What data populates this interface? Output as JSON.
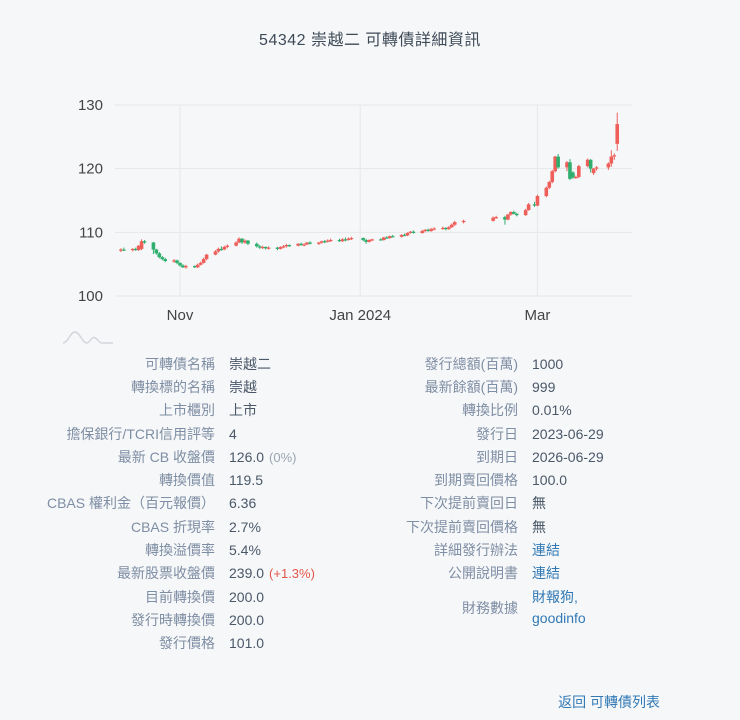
{
  "page": {
    "title": "54342 崇越二 可轉債詳細資訊"
  },
  "footer": {
    "back_label": "返回 可轉債列表"
  },
  "colors": {
    "up_candle": "#ee5f5a",
    "down_candle": "#2fae6e",
    "link": "#3279b5",
    "change_up": "#e4564a",
    "muted": "#9aa5b1"
  },
  "chart_data": {
    "type": "candlestick",
    "title": "",
    "xlabel": "",
    "ylabel": "",
    "grid": true,
    "legend": false,
    "y_ticks": [
      100,
      110,
      120,
      130
    ],
    "ylim": [
      99,
      130.5
    ],
    "x_range": [
      "2023-10-10",
      "2024-04-02"
    ],
    "x_ticks": [
      {
        "date": "2023-11-01",
        "label": "Nov"
      },
      {
        "date": "2024-01-01",
        "label": "Jan 2024"
      },
      {
        "date": "2024-03-01",
        "label": "Mar"
      }
    ],
    "up_color": "#ee5f5a",
    "down_color": "#2fae6e",
    "columns": [
      "date",
      "open",
      "high",
      "low",
      "close"
    ],
    "candles": [
      [
        "2023-10-12",
        107.1,
        107.5,
        106.9,
        107.3
      ],
      [
        "2023-10-13",
        107.3,
        107.6,
        107.1,
        107.2
      ],
      [
        "2023-10-16",
        107.2,
        107.5,
        107.0,
        107.4
      ],
      [
        "2023-10-17",
        107.4,
        107.6,
        107.1,
        107.2
      ],
      [
        "2023-10-18",
        107.2,
        108.0,
        107.1,
        107.9
      ],
      [
        "2023-10-19",
        107.4,
        108.9,
        107.2,
        108.6
      ],
      [
        "2023-10-20",
        108.6,
        108.8,
        108.2,
        108.4
      ],
      [
        "2023-10-23",
        108.4,
        108.5,
        106.6,
        107.3
      ],
      [
        "2023-10-24",
        107.3,
        107.4,
        106.5,
        106.7
      ],
      [
        "2023-10-25",
        106.7,
        106.9,
        105.9,
        106.1
      ],
      [
        "2023-10-26",
        106.1,
        106.3,
        105.6,
        105.8
      ],
      [
        "2023-10-27",
        105.8,
        106.0,
        105.3,
        105.5
      ],
      [
        "2023-10-30",
        105.5,
        105.8,
        105.2,
        105.6
      ],
      [
        "2023-10-31",
        105.6,
        105.7,
        105.0,
        105.2
      ],
      [
        "2023-11-01",
        105.2,
        105.3,
        104.6,
        104.8
      ],
      [
        "2023-11-02",
        104.8,
        105.0,
        104.4,
        104.5
      ],
      [
        "2023-11-03",
        104.5,
        104.9,
        104.3,
        104.7
      ],
      [
        "2023-11-06",
        104.7,
        104.8,
        104.4,
        104.5
      ],
      [
        "2023-11-07",
        104.5,
        105.1,
        104.4,
        104.9
      ],
      [
        "2023-11-08",
        104.9,
        105.4,
        104.8,
        105.2
      ],
      [
        "2023-11-09",
        105.2,
        106.0,
        105.1,
        105.8
      ],
      [
        "2023-11-10",
        105.8,
        106.6,
        105.6,
        106.5
      ],
      [
        "2023-11-13",
        106.5,
        107.2,
        106.4,
        107.0
      ],
      [
        "2023-11-14",
        107.0,
        107.6,
        106.8,
        107.4
      ],
      [
        "2023-11-15",
        107.4,
        107.8,
        107.1,
        107.3
      ],
      [
        "2023-11-16",
        107.3,
        107.9,
        107.2,
        107.7
      ],
      [
        "2023-11-17",
        107.7,
        108.1,
        107.5,
        107.9
      ],
      [
        "2023-11-20",
        107.9,
        108.6,
        107.8,
        108.4
      ],
      [
        "2023-11-21",
        108.4,
        109.2,
        108.3,
        109.0
      ],
      [
        "2023-11-22",
        109.0,
        109.1,
        108.2,
        108.4
      ],
      [
        "2023-11-23",
        108.4,
        108.9,
        108.2,
        108.7
      ],
      [
        "2023-11-24",
        108.7,
        108.8,
        108.0,
        108.2
      ],
      [
        "2023-11-27",
        108.2,
        108.4,
        107.6,
        107.8
      ],
      [
        "2023-11-28",
        107.8,
        108.0,
        107.4,
        107.6
      ],
      [
        "2023-11-29",
        107.6,
        107.9,
        107.4,
        107.7
      ],
      [
        "2023-11-30",
        107.7,
        107.8,
        107.3,
        107.5
      ],
      [
        "2023-12-01",
        107.5,
        107.8,
        107.3,
        107.6
      ],
      [
        "2023-12-04",
        107.6,
        107.7,
        107.2,
        107.4
      ],
      [
        "2023-12-05",
        107.4,
        107.8,
        107.3,
        107.7
      ],
      [
        "2023-12-06",
        107.7,
        108.0,
        107.5,
        107.8
      ],
      [
        "2023-12-07",
        107.8,
        108.2,
        107.6,
        108.0
      ],
      [
        "2023-12-08",
        108.0,
        108.1,
        107.7,
        107.9
      ],
      [
        "2023-12-11",
        107.9,
        108.3,
        107.8,
        108.2
      ],
      [
        "2023-12-12",
        108.2,
        108.4,
        107.9,
        108.0
      ],
      [
        "2023-12-13",
        108.0,
        108.3,
        107.8,
        108.1
      ],
      [
        "2023-12-14",
        108.1,
        108.5,
        108.0,
        108.4
      ],
      [
        "2023-12-15",
        108.4,
        108.6,
        108.1,
        108.2
      ],
      [
        "2023-12-18",
        108.2,
        108.5,
        108.0,
        108.4
      ],
      [
        "2023-12-19",
        108.4,
        108.7,
        108.2,
        108.6
      ],
      [
        "2023-12-20",
        108.6,
        108.8,
        108.3,
        108.5
      ],
      [
        "2023-12-21",
        108.5,
        108.9,
        108.4,
        108.7
      ],
      [
        "2023-12-22",
        108.7,
        109.0,
        108.5,
        108.8
      ],
      [
        "2023-12-25",
        108.8,
        109.0,
        108.5,
        108.6
      ],
      [
        "2023-12-26",
        108.6,
        109.1,
        108.5,
        108.9
      ],
      [
        "2023-12-27",
        108.9,
        109.2,
        108.6,
        108.8
      ],
      [
        "2023-12-28",
        108.8,
        109.2,
        108.7,
        109.0
      ],
      [
        "2023-12-29",
        109.0,
        109.3,
        108.8,
        109.1
      ],
      [
        "2024-01-02",
        109.1,
        109.2,
        108.6,
        108.8
      ],
      [
        "2024-01-03",
        108.8,
        109.0,
        108.2,
        108.5
      ],
      [
        "2024-01-04",
        108.5,
        108.9,
        108.4,
        108.8
      ],
      [
        "2024-01-05",
        108.8,
        109.0,
        108.6,
        108.9
      ],
      [
        "2024-01-08",
        108.9,
        109.1,
        108.7,
        108.8
      ],
      [
        "2024-01-09",
        108.8,
        109.3,
        108.7,
        109.2
      ],
      [
        "2024-01-10",
        109.2,
        109.4,
        109.0,
        109.1
      ],
      [
        "2024-01-11",
        109.1,
        109.5,
        109.0,
        109.4
      ],
      [
        "2024-01-12",
        109.4,
        109.6,
        109.2,
        109.3
      ],
      [
        "2024-01-15",
        109.3,
        109.7,
        109.2,
        109.6
      ],
      [
        "2024-01-16",
        109.6,
        109.8,
        109.4,
        109.5
      ],
      [
        "2024-01-17",
        109.5,
        110.0,
        109.4,
        109.9
      ],
      [
        "2024-01-18",
        109.9,
        110.2,
        109.8,
        110.1
      ],
      [
        "2024-01-19",
        110.1,
        110.3,
        109.8,
        109.9
      ],
      [
        "2024-01-22",
        109.9,
        110.4,
        109.8,
        110.2
      ],
      [
        "2024-01-23",
        110.2,
        110.5,
        110.0,
        110.4
      ],
      [
        "2024-01-24",
        110.4,
        110.6,
        110.1,
        110.2
      ],
      [
        "2024-01-25",
        110.2,
        110.7,
        110.1,
        110.5
      ],
      [
        "2024-01-26",
        110.5,
        110.8,
        110.3,
        110.6
      ],
      [
        "2024-01-29",
        110.6,
        110.9,
        110.4,
        110.7
      ],
      [
        "2024-01-30",
        110.7,
        110.8,
        110.3,
        110.5
      ],
      [
        "2024-01-31",
        110.5,
        111.0,
        110.4,
        110.8
      ],
      [
        "2024-02-01",
        110.8,
        111.4,
        110.7,
        111.2
      ],
      [
        "2024-02-02",
        111.2,
        111.8,
        111.0,
        111.6
      ],
      [
        "2024-02-05",
        111.6,
        112.0,
        111.4,
        111.8
      ],
      [
        "2024-02-15",
        111.8,
        112.5,
        111.7,
        112.3
      ],
      [
        "2024-02-16",
        112.3,
        112.6,
        112.1,
        112.4
      ],
      [
        "2024-02-19",
        112.4,
        112.6,
        111.2,
        112.0
      ],
      [
        "2024-02-20",
        112.0,
        112.9,
        111.9,
        112.8
      ],
      [
        "2024-02-21",
        112.8,
        113.3,
        112.6,
        113.2
      ],
      [
        "2024-02-22",
        113.2,
        113.4,
        112.8,
        112.9
      ],
      [
        "2024-02-23",
        112.9,
        113.1,
        112.5,
        112.7
      ],
      [
        "2024-02-26",
        112.7,
        113.7,
        112.6,
        113.5
      ],
      [
        "2024-02-27",
        113.5,
        114.6,
        113.4,
        114.4
      ],
      [
        "2024-02-29",
        114.4,
        114.8,
        114.0,
        114.2
      ],
      [
        "2024-03-01",
        114.2,
        115.9,
        114.1,
        115.7
      ],
      [
        "2024-03-04",
        115.7,
        117.2,
        115.5,
        117.0
      ],
      [
        "2024-03-05",
        117.0,
        118.1,
        116.8,
        117.9
      ],
      [
        "2024-03-06",
        117.9,
        119.8,
        117.7,
        119.6
      ],
      [
        "2024-03-07",
        119.6,
        122.0,
        119.4,
        121.9
      ],
      [
        "2024-03-08",
        121.9,
        122.3,
        120.0,
        120.2
      ],
      [
        "2024-03-11",
        120.2,
        121.2,
        119.6,
        121.0
      ],
      [
        "2024-03-12",
        121.0,
        121.5,
        118.2,
        118.4
      ],
      [
        "2024-03-13",
        119.4,
        119.6,
        118.4,
        118.6
      ],
      [
        "2024-03-14",
        118.6,
        118.9,
        118.4,
        118.7
      ],
      [
        "2024-03-15",
        118.7,
        120.6,
        118.5,
        120.4
      ],
      [
        "2024-03-18",
        120.4,
        121.6,
        120.2,
        121.4
      ],
      [
        "2024-03-19",
        121.4,
        121.5,
        119.4,
        120.0
      ],
      [
        "2024-03-20",
        119.3,
        120.1,
        119.0,
        120.0
      ],
      [
        "2024-03-21",
        120.0,
        120.4,
        119.7,
        120.2
      ],
      [
        "2024-03-25",
        120.2,
        121.0,
        119.8,
        120.8
      ],
      [
        "2024-03-26",
        120.8,
        122.9,
        120.3,
        121.9
      ],
      [
        "2024-03-27",
        121.9,
        122.4,
        121.4,
        122.1
      ],
      [
        "2024-03-28",
        123.9,
        128.8,
        122.8,
        127.0
      ]
    ]
  },
  "details": {
    "left": [
      {
        "label": "可轉債名稱",
        "value": "崇越二"
      },
      {
        "label": "轉換標的名稱",
        "value": "崇越"
      },
      {
        "label": "上市櫃別",
        "value": "上市"
      },
      {
        "label": "擔保銀行/TCRI信用評等",
        "value": "4"
      },
      {
        "label": "最新 CB 收盤價",
        "value": "126.0",
        "suffix": "(0%)",
        "suffix_style": "muted"
      },
      {
        "label": "轉換價值",
        "value": "119.5"
      },
      {
        "label": "CBAS 權利金（百元報價）",
        "value": "6.36"
      },
      {
        "label": "CBAS 折現率",
        "value": "2.7%"
      },
      {
        "label": "轉換溢價率",
        "value": "5.4%"
      },
      {
        "label": "最新股票收盤價",
        "value": "239.0",
        "suffix": "(+1.3%)",
        "suffix_style": "up"
      },
      {
        "label": "目前轉換價",
        "value": "200.0"
      },
      {
        "label": "發行時轉換價",
        "value": "200.0"
      },
      {
        "label": "發行價格",
        "value": "101.0"
      }
    ],
    "right": [
      {
        "label": "發行總額(百萬)",
        "value": "1000"
      },
      {
        "label": "最新餘額(百萬)",
        "value": "999"
      },
      {
        "label": "轉換比例",
        "value": "0.01%"
      },
      {
        "label": "發行日",
        "value": "2023-06-29"
      },
      {
        "label": "到期日",
        "value": "2026-06-29"
      },
      {
        "label": "到期賣回價格",
        "value": "100.0"
      },
      {
        "label": "下次提前賣回日",
        "value": "無"
      },
      {
        "label": "下次提前賣回價格",
        "value": "無"
      },
      {
        "label": "詳細發行辦法",
        "value": "連結",
        "link": true
      },
      {
        "label": "公開說明書",
        "value": "連結",
        "link": true
      },
      {
        "label": "財務數據",
        "links": [
          "財報狗,",
          "goodinfo"
        ]
      }
    ]
  }
}
